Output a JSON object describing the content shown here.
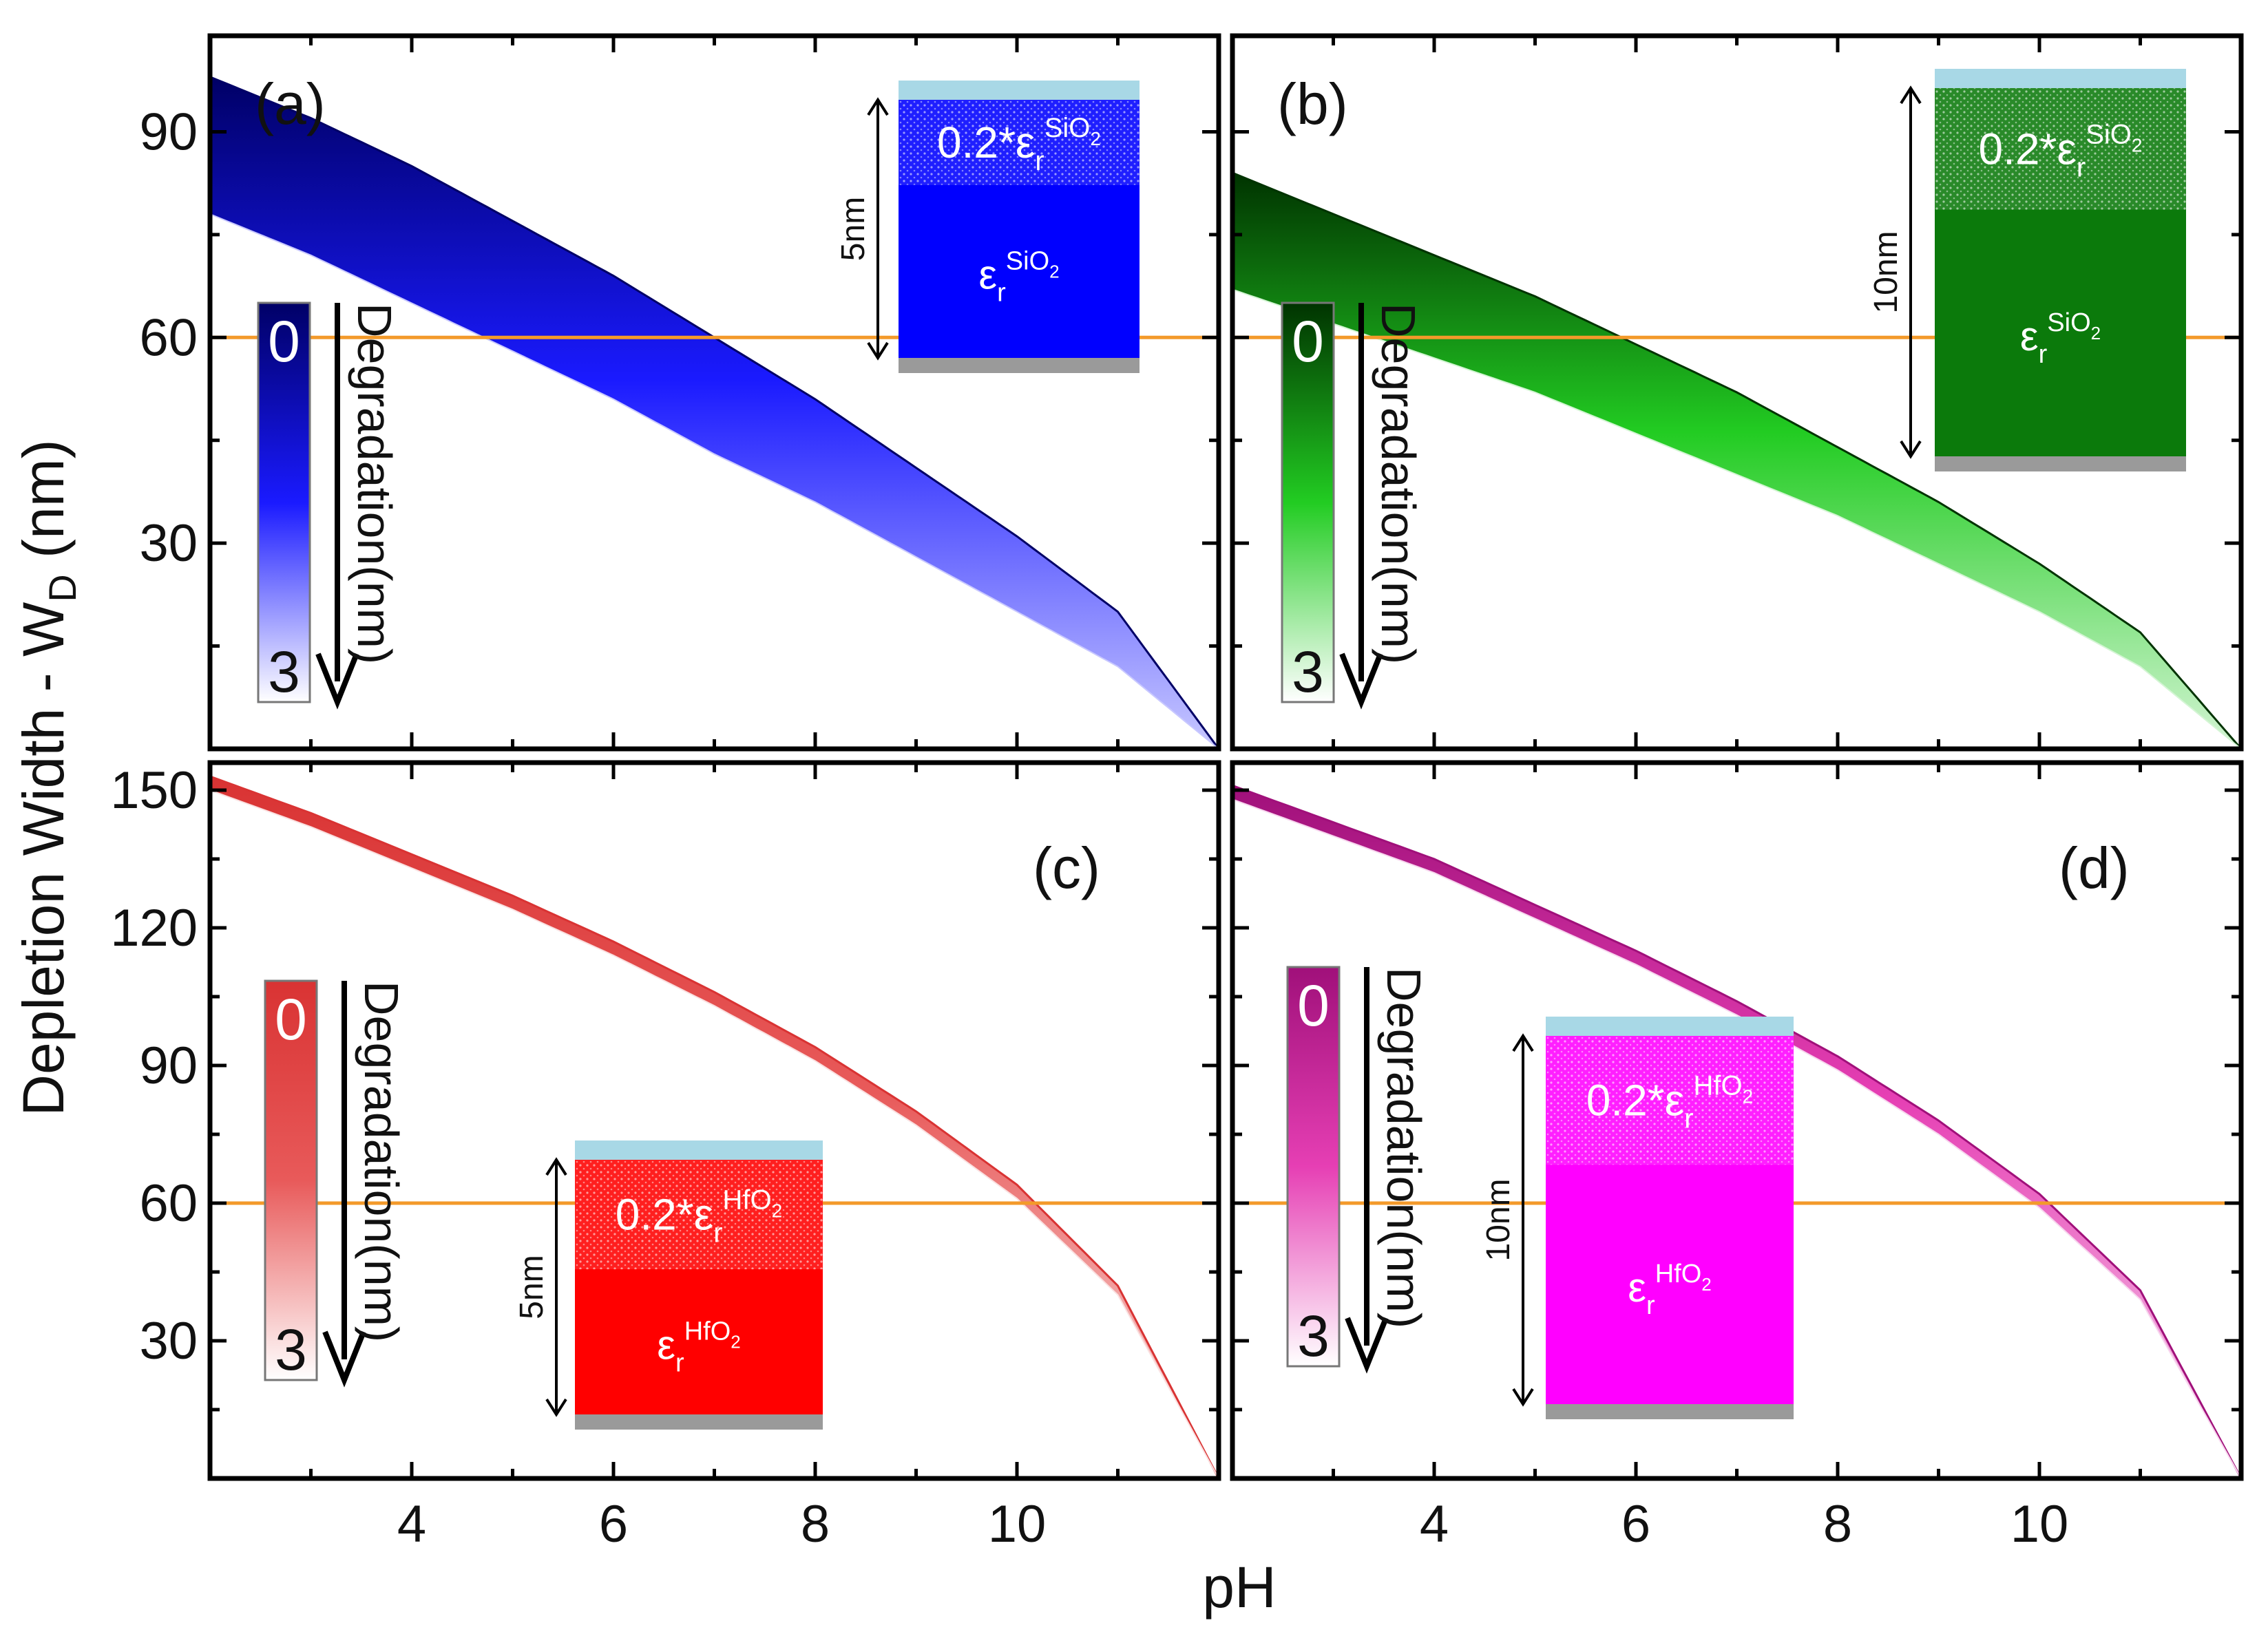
{
  "figure": {
    "ylabel_main": "Depletion Width - W",
    "ylabel_sub": "D",
    "ylabel_unit": " (nm)",
    "xlabel": "pH",
    "reference_line_color": "#f39a2a"
  },
  "chart_data": [
    {
      "id": "a",
      "type": "area",
      "panel_label": "(a)",
      "xlim": [
        2,
        12
      ],
      "ylim": [
        0,
        104
      ],
      "xticks": [
        4,
        6,
        8,
        10
      ],
      "show_xticklabels": false,
      "yticks": [
        30,
        60,
        90
      ],
      "yticklabels": [
        "30",
        "60",
        "90"
      ],
      "reference_line_y": 60,
      "series_top": {
        "name": "degradation 0 nm",
        "x": [
          2,
          3,
          4,
          5,
          6,
          7,
          8,
          9,
          10,
          11,
          12
        ],
        "y": [
          98,
          92,
          85,
          77,
          69,
          60,
          51,
          41,
          31,
          20,
          0
        ]
      },
      "series_bottom": {
        "name": "degradation 3 nm",
        "x": [
          2,
          3,
          4,
          5,
          6,
          7,
          8,
          9,
          10,
          11,
          12
        ],
        "y": [
          78,
          72,
          65,
          58,
          51,
          43,
          36,
          28,
          20,
          12,
          0
        ]
      },
      "color_dark": "#000066",
      "color_mid": "#1a1aff",
      "color_light": "#c8c8ff",
      "colorbar": {
        "top": "0",
        "bottom": "3",
        "label": "Degradation(nm)"
      },
      "inset": {
        "thickness_label": "5nm",
        "top_layer_label": "0.2*ε",
        "top_layer_sup": "SiO",
        "top_layer_sup_sub": "2",
        "bottom_layer_label": "ε",
        "bottom_layer_sub": "r",
        "bottom_layer_sup": "SiO",
        "bottom_layer_sup_sub": "2",
        "top_layer_sub": "r",
        "fill_color": "#0000ff"
      }
    },
    {
      "id": "b",
      "type": "area",
      "panel_label": "(b)",
      "xlim": [
        2,
        12
      ],
      "ylim": [
        0,
        104
      ],
      "xticks": [
        4,
        6,
        8,
        10
      ],
      "show_xticklabels": false,
      "yticks": [
        30,
        60,
        90
      ],
      "yticklabels": [
        "30",
        "60",
        "90"
      ],
      "reference_line_y": 60,
      "series_top": {
        "name": "degradation 0 nm",
        "x": [
          2,
          3,
          4,
          5,
          6,
          7,
          8,
          9,
          10,
          11,
          12
        ],
        "y": [
          84,
          78,
          72,
          66,
          59,
          52,
          44,
          36,
          27,
          17,
          0
        ]
      },
      "series_bottom": {
        "name": "degradation 3 nm",
        "x": [
          2,
          3,
          4,
          5,
          6,
          7,
          8,
          9,
          10,
          11,
          12
        ],
        "y": [
          67,
          62,
          57,
          52,
          46,
          40,
          34,
          27,
          20,
          12,
          0
        ]
      },
      "color_dark": "#003300",
      "color_mid": "#22cc22",
      "color_light": "#d4f5d4",
      "colorbar": {
        "top": "0",
        "bottom": "3",
        "label": "Degradation(nm)"
      },
      "inset": {
        "thickness_label": "10nm",
        "top_layer_label": "0.2*ε",
        "top_layer_sup": "SiO",
        "top_layer_sup_sub": "2",
        "bottom_layer_label": "ε",
        "bottom_layer_sub": "r",
        "bottom_layer_sup": "SiO",
        "bottom_layer_sup_sub": "2",
        "top_layer_sub": "r",
        "fill_color": "#0b7a0b"
      }
    },
    {
      "id": "c",
      "type": "area",
      "panel_label": "(c)",
      "xlim": [
        2,
        12
      ],
      "ylim": [
        0,
        156
      ],
      "xticks": [
        4,
        6,
        8,
        10
      ],
      "show_xticklabels": true,
      "yticks": [
        30,
        60,
        90,
        120,
        150
      ],
      "yticklabels": [
        "30",
        "60",
        "90",
        "120",
        "150"
      ],
      "reference_line_y": 60,
      "series_top": {
        "name": "degradation 0 nm",
        "x": [
          2,
          3,
          4,
          5,
          6,
          7,
          8,
          9,
          10,
          11,
          12
        ],
        "y": [
          153,
          145,
          136,
          127,
          117,
          106,
          94,
          80,
          64,
          42,
          0
        ]
      },
      "series_bottom": {
        "name": "degradation 3 nm",
        "x": [
          2,
          3,
          4,
          5,
          6,
          7,
          8,
          9,
          10,
          11,
          12
        ],
        "y": [
          150,
          142,
          133,
          124,
          114,
          103,
          91,
          77,
          61,
          40,
          0
        ]
      },
      "color_dark": "#d93333",
      "color_mid": "#e85a5a",
      "color_light": "#fae0e0",
      "colorbar": {
        "top": "0",
        "bottom": "3",
        "label": "Degradation(nm)"
      },
      "inset": {
        "thickness_label": "5nm",
        "top_layer_label": "0.2*ε",
        "top_layer_sup": "HfO",
        "top_layer_sup_sub": "2",
        "bottom_layer_label": "ε",
        "bottom_layer_sub": "r",
        "bottom_layer_sup": "HfO",
        "bottom_layer_sup_sub": "2",
        "top_layer_sub": "r",
        "fill_color": "#ff0000"
      }
    },
    {
      "id": "d",
      "type": "area",
      "panel_label": "(d)",
      "xlim": [
        2,
        12
      ],
      "ylim": [
        0,
        156
      ],
      "xticks": [
        4,
        6,
        8,
        10
      ],
      "show_xticklabels": true,
      "yticks": [
        30,
        60,
        90,
        120,
        150
      ],
      "yticklabels": [
        "30",
        "60",
        "90",
        "120",
        "150"
      ],
      "reference_line_y": 60,
      "series_top": {
        "name": "degradation 0 nm",
        "x": [
          2,
          3,
          4,
          5,
          6,
          7,
          8,
          9,
          10,
          11,
          12
        ],
        "y": [
          151,
          143,
          135,
          125,
          115,
          104,
          92,
          78,
          62,
          41,
          0
        ]
      },
      "series_bottom": {
        "name": "degradation 3 nm",
        "x": [
          2,
          3,
          4,
          5,
          6,
          7,
          8,
          9,
          10,
          11,
          12
        ],
        "y": [
          148,
          140,
          132,
          122,
          112,
          101,
          89,
          75,
          59,
          39,
          0
        ]
      },
      "color_dark": "#a0107a",
      "color_mid": "#e63fb4",
      "color_light": "#f7d6ee",
      "colorbar": {
        "top": "0",
        "bottom": "3",
        "label": "Degradation(nm)"
      },
      "inset": {
        "thickness_label": "10nm",
        "top_layer_label": "0.2*ε",
        "top_layer_sup": "HfO",
        "top_layer_sup_sub": "2",
        "bottom_layer_label": "ε",
        "bottom_layer_sub": "r",
        "bottom_layer_sup": "HfO",
        "bottom_layer_sup_sub": "2",
        "top_layer_sub": "r",
        "fill_color": "#ff00ff"
      }
    }
  ]
}
